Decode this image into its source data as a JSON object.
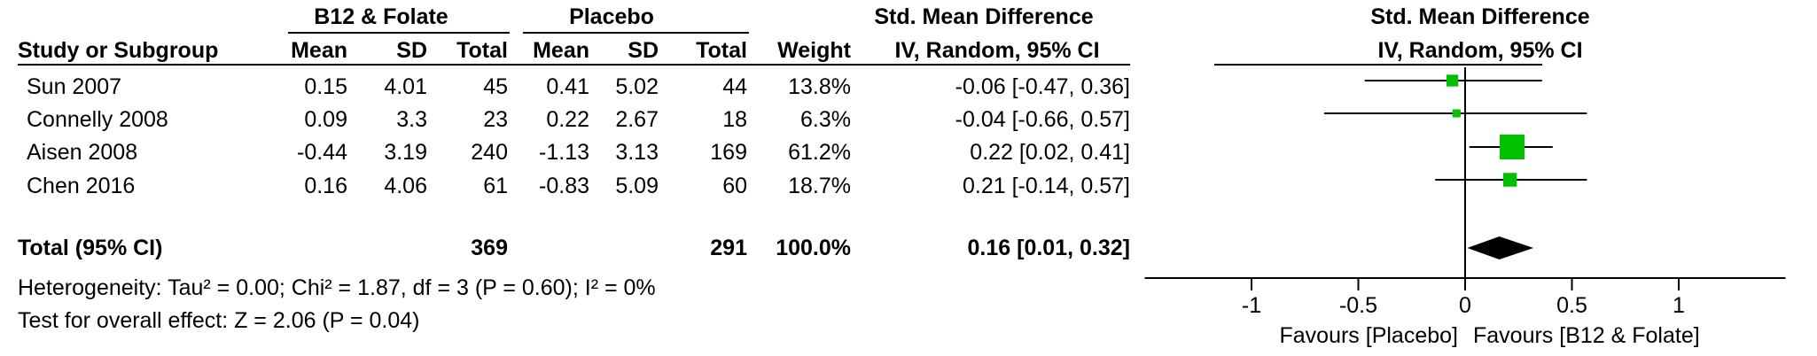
{
  "header": {
    "group_b12": "B12 & Folate",
    "group_placebo": "Placebo",
    "smd_title": "Std. Mean Difference",
    "study_col": "Study or Subgroup",
    "mean1": "Mean",
    "sd1": "SD",
    "total1": "Total",
    "mean2": "Mean",
    "sd2": "SD",
    "total2": "Total",
    "weight": "Weight",
    "method": "IV, Random, 95% CI",
    "plot_title": "Std. Mean Difference",
    "plot_method": "IV, Random, 95% CI"
  },
  "rows": [
    {
      "study": "Sun 2007",
      "m1": "0.15",
      "sd1": "4.01",
      "n1": "45",
      "m2": "0.41",
      "sd2": "5.02",
      "n2": "44",
      "weight": "13.8%",
      "ci": "-0.06 [-0.47, 0.36]"
    },
    {
      "study": "Connelly 2008",
      "m1": "0.09",
      "sd1": "3.3",
      "n1": "23",
      "m2": "0.22",
      "sd2": "2.67",
      "n2": "18",
      "weight": "6.3%",
      "ci": "-0.04 [-0.66, 0.57]"
    },
    {
      "study": "Aisen 2008",
      "m1": "-0.44",
      "sd1": "3.19",
      "n1": "240",
      "m2": "-1.13",
      "sd2": "3.13",
      "n2": "169",
      "weight": "61.2%",
      "ci": "0.22 [0.02, 0.41]"
    },
    {
      "study": "Chen 2016",
      "m1": "0.16",
      "sd1": "4.06",
      "n1": "61",
      "m2": "-0.83",
      "sd2": "5.09",
      "n2": "60",
      "weight": "18.7%",
      "ci": "0.21 [-0.14, 0.57]"
    }
  ],
  "total": {
    "label": "Total (95% CI)",
    "n1": "369",
    "n2": "291",
    "weight": "100.0%",
    "ci": "0.16 [0.01, 0.32]"
  },
  "heterogeneity": "Heterogeneity: Tau² = 0.00; Chi² = 1.87, df = 3 (P = 0.60); I² = 0%",
  "overall_effect": "Test for overall effect: Z = 2.06 (P = 0.04)",
  "axis": {
    "ticks": [
      "-1",
      "-0.5",
      "0",
      "0.5",
      "1"
    ],
    "favours_left": "Favours [Placebo]",
    "favours_right": "Favours [B12 & Folate]"
  },
  "colors": {
    "marker": "#00c000",
    "diamond": "#000000"
  },
  "chart_data": {
    "type": "forest",
    "title": "Std. Mean Difference",
    "subtitle": "IV, Random, 95% CI",
    "xlim": [
      -1.5,
      1.5
    ],
    "xticks": [
      -1,
      -0.5,
      0,
      0.5,
      1
    ],
    "studies": [
      {
        "name": "Sun 2007",
        "estimate": -0.06,
        "lower": -0.47,
        "upper": 0.36,
        "weight": 13.8
      },
      {
        "name": "Connelly 2008",
        "estimate": -0.04,
        "lower": -0.66,
        "upper": 0.57,
        "weight": 6.3
      },
      {
        "name": "Aisen 2008",
        "estimate": 0.22,
        "lower": 0.02,
        "upper": 0.41,
        "weight": 61.2
      },
      {
        "name": "Chen 2016",
        "estimate": 0.21,
        "lower": -0.14,
        "upper": 0.57,
        "weight": 18.7
      }
    ],
    "pooled": {
      "estimate": 0.16,
      "lower": 0.01,
      "upper": 0.32
    }
  }
}
